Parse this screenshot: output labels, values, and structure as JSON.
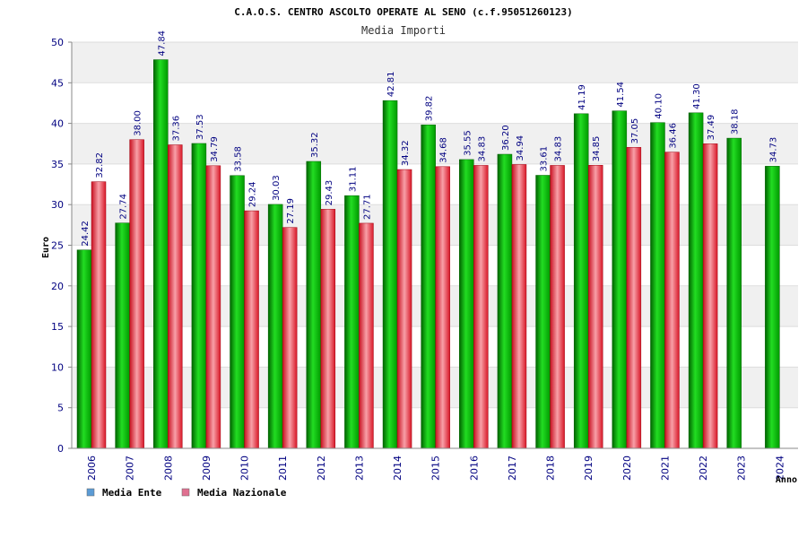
{
  "chart_data": {
    "type": "bar",
    "title": "C.A.O.S. CENTRO ASCOLTO OPERATE AL SENO (c.f.95051260123)",
    "subtitle": "Media Importi",
    "ylabel": "Euro",
    "xlabel": "Anno",
    "ylim": [
      0,
      50
    ],
    "yticks": [
      "0",
      "5",
      "10",
      "15",
      "20",
      "25",
      "30",
      "35",
      "40",
      "45",
      "50"
    ],
    "grid": "horizontal bands",
    "legend_position": "bottom-left",
    "categories": [
      "2006",
      "2007",
      "2008",
      "2009",
      "2010",
      "2011",
      "2012",
      "2013",
      "2014",
      "2015",
      "2016",
      "2017",
      "2018",
      "2019",
      "2020",
      "2021",
      "2022",
      "2023",
      "2024"
    ],
    "series": [
      {
        "name": "Media Ente",
        "color": "#00aa00",
        "legend_color": "#5b9bd5",
        "values": [
          24.42,
          27.74,
          47.84,
          37.53,
          33.58,
          30.03,
          35.32,
          31.11,
          42.81,
          39.82,
          35.55,
          36.2,
          33.61,
          41.19,
          41.54,
          40.1,
          41.3,
          38.18,
          34.73
        ],
        "labels": [
          "24.42",
          "27.74",
          "47.84",
          "37.53",
          "33.58",
          "30.03",
          "35.32",
          "31.11",
          "42.81",
          "39.82",
          "35.55",
          "36.20",
          "33.61",
          "41.19",
          "41.54",
          "40.10",
          "41.30",
          "38.18",
          "34.73"
        ]
      },
      {
        "name": "Media Nazionale",
        "color": "#e8202a",
        "legend_color": "#e07090",
        "values": [
          32.82,
          38.0,
          37.36,
          34.79,
          29.24,
          27.19,
          29.43,
          27.71,
          34.32,
          34.68,
          34.83,
          34.94,
          34.83,
          34.85,
          37.05,
          36.46,
          37.49,
          null,
          null
        ],
        "labels": [
          "32.82",
          "38.00",
          "37.36",
          "34.79",
          "29.24",
          "27.19",
          "29.43",
          "27.71",
          "34.32",
          "34.68",
          "34.83",
          "34.94",
          "34.83",
          "34.85",
          "37.05",
          "36.46",
          "37.49",
          null,
          null
        ]
      }
    ]
  }
}
